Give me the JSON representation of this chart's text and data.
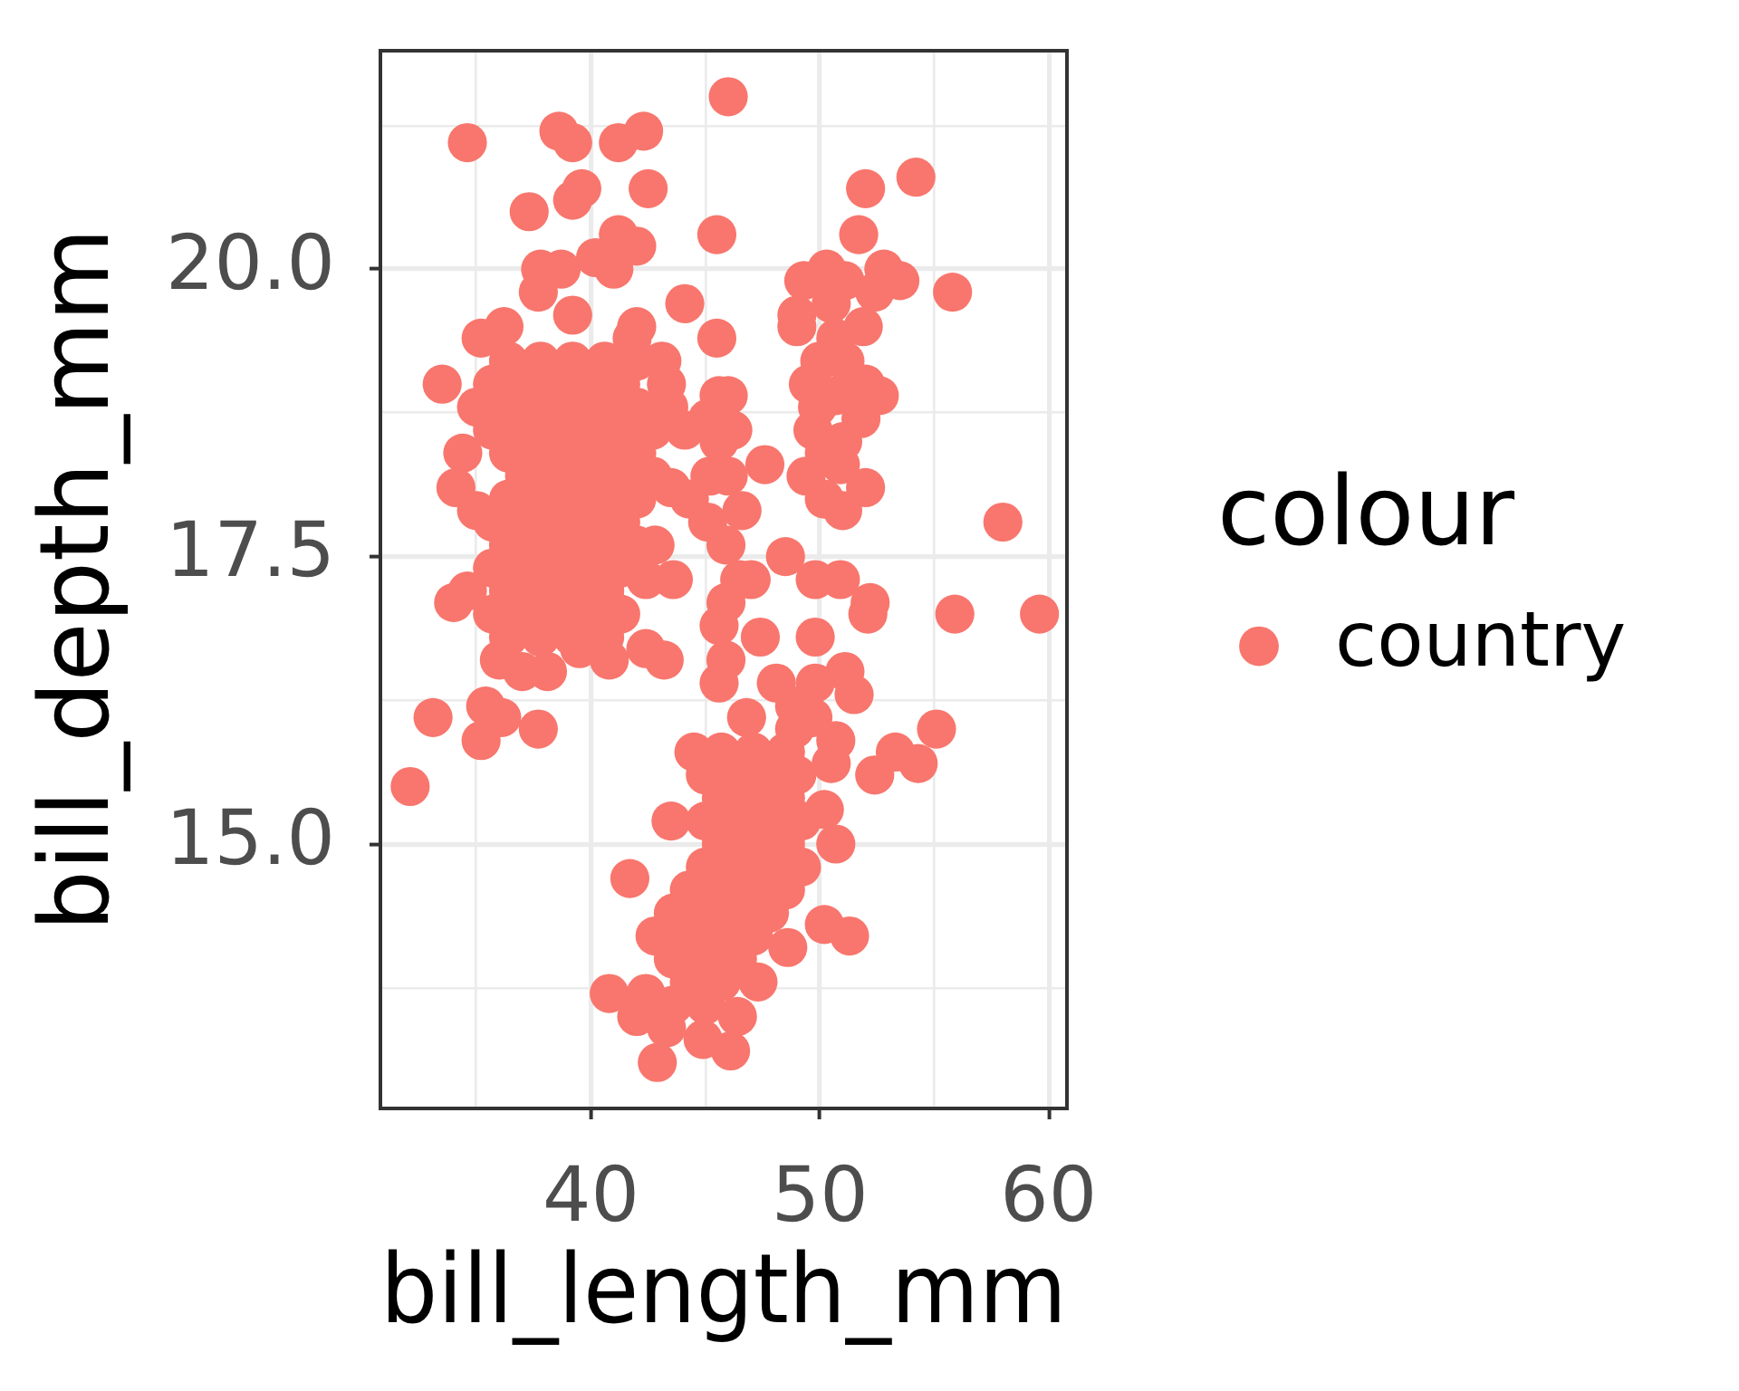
{
  "chart_data": {
    "type": "scatter",
    "xlabel": "bill_length_mm",
    "ylabel": "bill_depth_mm",
    "legend_title": "colour",
    "legend": "right",
    "marker": "circle",
    "grid": true,
    "xlim": [
      30.8,
      60.8
    ],
    "ylim": [
      12.7,
      21.9
    ],
    "xticks": [
      {
        "value": 35,
        "label": null
      },
      40,
      {
        "value": 45,
        "label": null
      },
      50,
      {
        "value": 55,
        "label": null
      },
      60
    ],
    "yticks": [
      {
        "value": 13.75,
        "label": null
      },
      {
        "value": 15,
        "label": "15.0"
      },
      {
        "value": 16.25,
        "label": null
      },
      17.5,
      {
        "value": 18.75,
        "label": null
      },
      {
        "value": 20,
        "label": "20.0"
      },
      {
        "value": 21.25,
        "label": null
      }
    ],
    "series": [
      {
        "name": "country",
        "color": "#f8766d",
        "x": [
          34.6,
          38.6,
          39.2,
          41.2,
          42.3,
          46.0,
          39.6,
          39.2,
          42.5,
          37.3,
          41.2,
          42.0,
          45.5,
          37.8,
          38.7,
          40.2,
          41.0,
          37.7,
          39.2,
          44.1,
          42.0,
          41.8,
          35.2,
          36.2,
          43.1,
          43.3,
          33.5,
          45.5,
          45.6,
          52.0,
          54.2,
          51.7,
          49.3,
          50.3,
          51.1,
          52.8,
          53.5,
          55.8,
          52.4,
          49.0,
          49.0,
          50.5,
          51.9,
          50.7,
          49.5,
          51.1,
          52.0,
          46.0,
          50.7,
          52.6,
          49.9,
          51.8,
          49.7,
          51.0,
          50.9,
          49.4,
          52.0,
          50.2,
          51.0,
          50.0,
          50.2,
          34.4,
          34.1,
          35.0,
          34.0,
          34.6,
          36.0,
          37.0,
          38.1,
          39.5,
          40.8,
          42.4,
          43.2,
          42.4,
          42.8,
          43.5,
          44.3,
          45.1,
          43.6,
          45.1,
          45.2,
          33.1,
          35.4,
          36.1,
          35.2,
          37.7,
          32.1,
          44.5,
          36.4,
          37.8,
          39.2,
          40.6,
          42.0,
          35.7,
          37.1,
          38.5,
          39.9,
          41.3,
          35.0,
          36.4,
          37.8,
          39.2,
          40.6,
          42.0,
          43.4,
          35.7,
          37.1,
          38.5,
          39.9,
          41.3,
          42.7,
          44.1,
          36.4,
          37.8,
          39.2,
          40.6,
          42.0,
          37.1,
          38.5,
          39.9,
          41.3,
          42.7,
          36.4,
          37.8,
          39.2,
          40.6,
          42.0,
          35.7,
          37.1,
          38.5,
          39.9,
          41.3,
          36.4,
          37.8,
          39.2,
          40.6,
          42.0,
          35.7,
          37.1,
          38.5,
          39.9,
          41.3,
          36.4,
          37.8,
          39.2,
          40.6,
          35.7,
          37.1,
          38.5,
          39.9,
          41.3,
          36.4,
          37.8,
          39.2,
          40.6,
          41.7,
          43.5,
          40.8,
          42.0,
          42.9,
          42.8,
          43.6,
          42.4,
          43.3,
          44.9,
          47.3,
          46.4,
          46.1,
          50.2,
          51.3,
          48.6,
          50.5,
          49.0,
          50.2,
          50.7,
          52.4,
          53.3,
          54.3,
          55.1,
          48.5,
          49.8,
          50.9,
          52.2,
          52.1,
          55.9,
          59.6,
          58.0,
          49.8,
          47.4,
          51.1,
          51.5,
          49.8,
          48.9,
          48.1,
          46.8,
          45.9,
          46.5,
          45.9,
          48.9,
          50.7,
          49.7,
          46.2,
          47.6,
          46.0,
          46.6,
          45.6,
          45.9,
          47.0,
          45.6,
          45.6,
          45.7,
          47.1,
          48.5,
          45.0,
          46.4,
          47.8,
          45.7,
          47.1,
          48.5,
          45.0,
          46.4,
          47.8,
          49.2,
          45.7,
          47.1,
          48.5,
          45.0,
          46.4,
          47.8,
          49.2,
          44.3,
          45.7,
          47.1,
          48.5,
          43.6,
          45.0,
          46.4,
          47.8,
          44.3,
          45.7,
          47.1,
          45.0,
          46.4,
          44.3,
          45.7,
          43.6,
          45.0
        ],
        "values": [
          21.1,
          21.2,
          21.1,
          21.1,
          21.2,
          21.5,
          20.7,
          20.6,
          20.7,
          20.5,
          20.3,
          20.2,
          20.3,
          20.0,
          20.0,
          20.1,
          20.0,
          19.8,
          19.6,
          19.7,
          19.5,
          19.4,
          19.4,
          19.5,
          19.2,
          19.0,
          19.0,
          19.4,
          18.9,
          20.7,
          20.8,
          20.3,
          19.9,
          20.0,
          19.9,
          20.0,
          19.9,
          19.8,
          19.8,
          19.6,
          19.5,
          19.7,
          19.5,
          19.4,
          19.0,
          19.2,
          19.0,
          18.9,
          18.9,
          18.9,
          18.8,
          18.7,
          18.6,
          18.5,
          18.3,
          18.2,
          18.1,
          18.0,
          17.9,
          19.2,
          18.4,
          18.4,
          18.1,
          17.9,
          17.1,
          17.2,
          16.6,
          16.5,
          16.5,
          16.7,
          16.6,
          16.7,
          16.6,
          17.3,
          17.6,
          18.1,
          18.0,
          17.8,
          17.3,
          18.7,
          18.2,
          16.1,
          16.2,
          16.1,
          15.9,
          16.0,
          15.5,
          15.8,
          19.2,
          19.2,
          19.2,
          19.2,
          19.2,
          19.0,
          19.0,
          19.0,
          19.0,
          19.0,
          18.8,
          18.8,
          18.8,
          18.8,
          18.8,
          18.8,
          18.8,
          18.6,
          18.6,
          18.6,
          18.6,
          18.6,
          18.6,
          18.6,
          18.4,
          18.4,
          18.4,
          18.4,
          18.4,
          18.2,
          18.2,
          18.2,
          18.2,
          18.2,
          18.0,
          18.0,
          18.0,
          18.0,
          18.0,
          17.8,
          17.8,
          17.8,
          17.8,
          17.8,
          17.6,
          17.6,
          17.6,
          17.6,
          17.6,
          17.4,
          17.4,
          17.4,
          17.4,
          17.4,
          17.2,
          17.2,
          17.2,
          17.2,
          17.0,
          17.0,
          17.0,
          17.0,
          17.0,
          16.8,
          16.8,
          16.8,
          16.8,
          14.7,
          15.2,
          13.7,
          13.5,
          13.1,
          14.2,
          14.0,
          13.7,
          13.4,
          13.3,
          13.8,
          13.5,
          13.2,
          14.3,
          14.2,
          14.1,
          15.7,
          15.6,
          15.3,
          15.0,
          15.6,
          15.8,
          15.7,
          16.0,
          17.5,
          17.3,
          17.3,
          17.1,
          17.0,
          17.0,
          17.0,
          17.8,
          16.8,
          16.8,
          16.5,
          16.3,
          16.4,
          16.2,
          16.4,
          16.1,
          16.6,
          17.3,
          17.1,
          16.0,
          15.9,
          16.1,
          18.6,
          18.3,
          18.2,
          17.9,
          18.5,
          17.6,
          17.3,
          16.9,
          16.4,
          15.8,
          15.8,
          15.8,
          15.6,
          15.6,
          15.6,
          15.4,
          15.4,
          15.4,
          15.2,
          15.2,
          15.2,
          15.2,
          15.0,
          15.0,
          15.0,
          14.8,
          14.8,
          14.8,
          14.8,
          14.6,
          14.6,
          14.6,
          14.6,
          14.4,
          14.4,
          14.4,
          14.4,
          14.2,
          14.2,
          14.2,
          14.0,
          14.0,
          13.8,
          13.8,
          13.6,
          13.6
        ]
      }
    ]
  }
}
